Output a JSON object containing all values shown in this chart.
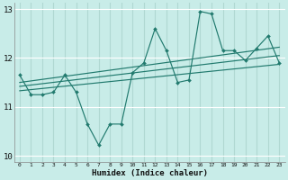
{
  "x": [
    0,
    1,
    2,
    3,
    4,
    5,
    6,
    7,
    8,
    9,
    10,
    11,
    12,
    13,
    14,
    15,
    16,
    17,
    18,
    19,
    20,
    21,
    22,
    23
  ],
  "y_main": [
    11.65,
    11.25,
    11.25,
    11.3,
    11.65,
    11.3,
    10.65,
    10.22,
    10.65,
    10.65,
    11.7,
    11.9,
    12.6,
    12.15,
    11.5,
    11.55,
    12.95,
    12.9,
    12.15,
    12.15,
    11.95,
    12.2,
    12.45,
    11.9
  ],
  "trend_lines": [
    {
      "x0": 0,
      "y0": 11.5,
      "x1": 23,
      "y1": 12.22
    },
    {
      "x0": 0,
      "y0": 11.42,
      "x1": 23,
      "y1": 12.05
    },
    {
      "x0": 0,
      "y0": 11.33,
      "x1": 23,
      "y1": 11.87
    }
  ],
  "color": "#217a6e",
  "bg_color": "#c8ece8",
  "grid_color": "#b0d8d2",
  "xlabel": "Humidex (Indice chaleur)",
  "xlim": [
    -0.5,
    23.5
  ],
  "ylim": [
    9.88,
    13.12
  ],
  "yticks": [
    10,
    11,
    12,
    13
  ],
  "xticks": [
    0,
    1,
    2,
    3,
    4,
    5,
    6,
    7,
    8,
    9,
    10,
    11,
    12,
    13,
    14,
    15,
    16,
    17,
    18,
    19,
    20,
    21,
    22,
    23
  ]
}
